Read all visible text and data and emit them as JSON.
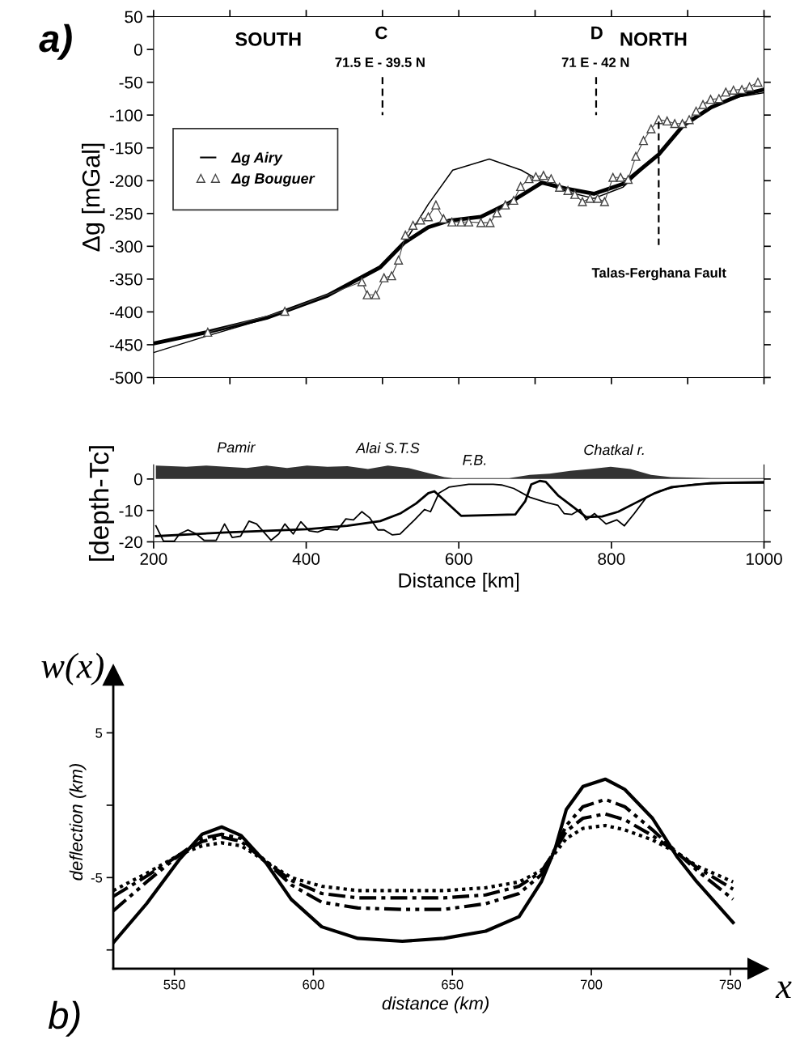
{
  "chart_data": [
    {
      "type": "line",
      "title": "a)",
      "ylabel": "Δg [mGal]",
      "xlim": [
        200,
        1000
      ],
      "ylim": [
        -500,
        50
      ],
      "yticks": [
        50,
        0,
        -50,
        -100,
        -150,
        -200,
        -250,
        -300,
        -350,
        -400,
        -450,
        -500
      ],
      "tick_labels": "y",
      "legend": "top left",
      "series": [
        {
          "type": "line",
          "color": "#000000",
          "line_style": "solid",
          "x": [
            200,
            269,
            348,
            428,
            497,
            528,
            560,
            587,
            629,
            666,
            709,
            740,
            777,
            815,
            862,
            894,
            931,
            968,
            1000
          ],
          "values": [
            -448,
            -431,
            -409,
            -375,
            -332,
            -295,
            -271,
            -261,
            -255,
            -234,
            -203,
            -212,
            -220,
            -205,
            -160,
            -116,
            -88,
            -70,
            -61
          ]
        },
        {
          "name": "Δg Airy",
          "type": "line",
          "color": "#000000",
          "line_style": "solid",
          "x": [
            200,
            269,
            348,
            428,
            497,
            528,
            560,
            592,
            640,
            682,
            714,
            745,
            777,
            815,
            862,
            894,
            931,
            968,
            1000
          ],
          "values": [
            -462,
            -437,
            -410,
            -375,
            -332,
            -296,
            -236,
            -184,
            -167,
            -184,
            -205,
            -218,
            -227,
            -210,
            -160,
            -116,
            -88,
            -72,
            -66
          ]
        },
        {
          "name": "Δg Bouguer",
          "type": "line",
          "color": "#444444",
          "line_style": "solid",
          "marker": "triangle",
          "x": [
            271,
            372,
            473,
            480,
            491,
            502,
            512,
            521,
            530,
            540,
            550,
            560,
            570,
            580,
            591,
            603,
            613,
            629,
            641,
            650,
            661,
            672,
            681,
            692,
            701,
            711,
            721,
            732,
            743,
            752,
            762,
            772,
            782,
            791,
            802,
            812,
            822,
            832,
            842,
            852,
            862,
            873,
            883,
            893,
            902,
            911,
            920,
            930,
            941,
            950,
            960,
            971,
            981,
            992
          ],
          "values": [
            -431,
            -399,
            -354,
            -374,
            -374,
            -348,
            -345,
            -321,
            -283,
            -268,
            -260,
            -255,
            -237,
            -258,
            -263,
            -263,
            -263,
            -264,
            -264,
            -249,
            -237,
            -230,
            -209,
            -197,
            -194,
            -192,
            -197,
            -210,
            -215,
            -221,
            -232,
            -227,
            -227,
            -232,
            -195,
            -195,
            -198,
            -163,
            -139,
            -121,
            -107,
            -109,
            -113,
            -113,
            -107,
            -94,
            -84,
            -76,
            -75,
            -65,
            -62,
            -61,
            -57,
            -50
          ]
        },
        {
          "type": "line",
          "color": "#000000",
          "line_style": "dashed",
          "x": [
            500,
            500
          ],
          "values": [
            -42,
            -100
          ]
        },
        {
          "type": "line",
          "color": "#000000",
          "line_style": "dashed",
          "x": [
            780,
            780
          ],
          "values": [
            -42,
            -100
          ]
        },
        {
          "type": "line",
          "color": "#000000",
          "line_style": "dashed",
          "x": [
            862,
            862
          ],
          "values": [
            -110,
            -298
          ]
        }
      ],
      "annotations": [
        "SOUTH",
        "C",
        "71.5 E - 39.5 N",
        "D",
        "71 E - 42 N",
        "NORTH",
        "Talas-Ferghana Fault"
      ]
    },
    {
      "type": "line",
      "ylabel": "[depth-Tc]",
      "xlabel": "Distance [km]",
      "xlim": [
        200,
        1000
      ],
      "ylim": [
        -20,
        4.5
      ],
      "xticks": [
        200,
        400,
        600,
        800,
        1000
      ],
      "yticks": [
        0,
        -10,
        -20
      ],
      "series": [
        {
          "type": "area",
          "color": "#333333",
          "x": [
            203,
            243,
            269,
            295,
            322,
            348,
            375,
            401,
            428,
            454,
            481,
            507,
            534,
            560,
            581,
            592,
            666,
            693,
            719,
            746,
            772,
            799,
            825,
            852,
            878,
            931,
            1000
          ],
          "values": [
            4.3,
            3.9,
            4.3,
            3.9,
            3.5,
            4.3,
            3.5,
            4.3,
            3.9,
            4.1,
            3.2,
            4.3,
            3.5,
            1.9,
            0.6,
            0.3,
            0.3,
            1.3,
            1.7,
            2.6,
            3.2,
            3.9,
            3.2,
            1.3,
            0.6,
            0.3,
            0.3
          ]
        },
        {
          "type": "line",
          "color": "#000000",
          "line_style": "solid",
          "x": [
            203,
            295,
            401,
            454,
            497,
            523,
            544,
            560,
            568,
            603,
            674,
            687,
            695,
            706,
            714,
            730,
            751,
            767,
            788,
            809,
            830,
            857,
            878,
            931,
            1000
          ],
          "values": [
            -18.2,
            -17.0,
            -16.0,
            -14.9,
            -13.4,
            -11.0,
            -7.8,
            -4.5,
            -3.9,
            -11.7,
            -11.3,
            -7.1,
            -1.7,
            -0.6,
            -0.9,
            -5.2,
            -9.1,
            -12.1,
            -11.9,
            -10.4,
            -7.8,
            -4.5,
            -2.6,
            -1.3,
            -1.0
          ]
        },
        {
          "type": "line",
          "color": "#000000",
          "line_style": "solid",
          "x": [
            203,
            213,
            227,
            234,
            245,
            256,
            266,
            282,
            293,
            303,
            314,
            325,
            335,
            354,
            364,
            372,
            383,
            393,
            404,
            415,
            425,
            441,
            452,
            462,
            473,
            483,
            494,
            502,
            513,
            523,
            542,
            555,
            563,
            574,
            587,
            613,
            645,
            656,
            672,
            693,
            714,
            730,
            738,
            748,
            759,
            767,
            778,
            793,
            807,
            817,
            830,
            846,
            862,
            883,
            910,
            958,
            1000
          ],
          "values": [
            -14.9,
            -19.8,
            -19.8,
            -17.5,
            -16.2,
            -17.5,
            -19.5,
            -19.5,
            -14.3,
            -18.6,
            -18.2,
            -13.4,
            -14.3,
            -19.5,
            -17.5,
            -14.3,
            -17.5,
            -13.6,
            -16.5,
            -16.9,
            -16.0,
            -16.2,
            -12.7,
            -13.0,
            -10.4,
            -12.3,
            -16.2,
            -16.2,
            -17.8,
            -17.5,
            -13.0,
            -9.7,
            -10.4,
            -4.5,
            -2.6,
            -1.7,
            -1.7,
            -1.9,
            -3.0,
            -5.8,
            -7.4,
            -8.4,
            -11.0,
            -11.3,
            -9.7,
            -13.0,
            -11.0,
            -14.3,
            -13.0,
            -14.9,
            -11.0,
            -5.8,
            -3.9,
            -2.6,
            -1.7,
            -1.3,
            -1.3
          ]
        }
      ],
      "annotations": [
        {
          "text": "Pamir",
          "x": 308,
          "y": 4.3
        },
        {
          "text": "Alai S.T.S",
          "x": 507,
          "y": 4.1
        },
        {
          "text": "F.B.",
          "x": 621,
          "y": 0.3
        },
        {
          "text": "Chatkal r.",
          "x": 804,
          "y": 3.5
        }
      ]
    },
    {
      "type": "line",
      "title": "b)",
      "xlabel": "distance (km)",
      "ylabel": "deflection (km)",
      "xlim": [
        528,
        760
      ],
      "ylim": [
        -11.3,
        9
      ],
      "xticks": [
        550,
        600,
        650,
        700,
        750
      ],
      "yticks": [
        {
          "value": 5,
          "label": "5"
        },
        {
          "value": 0,
          "label": null
        },
        {
          "value": -5,
          "label": "-5"
        },
        {
          "value": -10,
          "label": null
        }
      ],
      "series": [
        {
          "type": "line",
          "color": "#000000",
          "line_style": "solid",
          "x": [
            528,
            540,
            552,
            560,
            567,
            574,
            583,
            592,
            603,
            616,
            632,
            647,
            662,
            674,
            682,
            687,
            691,
            697,
            705,
            712,
            722,
            731,
            738,
            751
          ],
          "values": [
            -9.5,
            -6.8,
            -3.7,
            -2.0,
            -1.5,
            -2.1,
            -4.0,
            -6.5,
            -8.4,
            -9.2,
            -9.4,
            -9.2,
            -8.7,
            -7.7,
            -5.3,
            -3.0,
            -0.3,
            1.3,
            1.8,
            1.1,
            -0.9,
            -3.6,
            -5.3,
            -8.1
          ]
        },
        {
          "type": "line",
          "color": "#000000",
          "line_style": "dashdotdot",
          "x": [
            528,
            540,
            552,
            560,
            567,
            574,
            583,
            592,
            603,
            616,
            632,
            647,
            662,
            674,
            682,
            687,
            691,
            697,
            705,
            712,
            722,
            731,
            738,
            751
          ],
          "values": [
            -7.3,
            -5.3,
            -3.4,
            -2.3,
            -2.0,
            -2.3,
            -3.9,
            -5.5,
            -6.7,
            -7.1,
            -7.2,
            -7.2,
            -6.8,
            -6.1,
            -4.8,
            -3.0,
            -1.4,
            -0.1,
            0.4,
            -0.1,
            -1.7,
            -3.3,
            -4.5,
            -6.5
          ]
        },
        {
          "type": "line",
          "color": "#000000",
          "line_style": "dashdot",
          "x": [
            528,
            540,
            552,
            560,
            567,
            574,
            583,
            592,
            603,
            616,
            632,
            647,
            662,
            674,
            682,
            687,
            691,
            697,
            705,
            712,
            722,
            731,
            738,
            751
          ],
          "values": [
            -6.3,
            -4.9,
            -3.4,
            -2.5,
            -2.2,
            -2.5,
            -3.9,
            -5.2,
            -6.1,
            -6.4,
            -6.4,
            -6.4,
            -6.2,
            -5.6,
            -4.6,
            -3.1,
            -1.8,
            -0.9,
            -0.6,
            -1.0,
            -2.1,
            -3.3,
            -4.3,
            -5.8
          ]
        },
        {
          "type": "line",
          "color": "#000000",
          "line_style": "dotted",
          "x": [
            528,
            540,
            552,
            560,
            567,
            574,
            583,
            592,
            603,
            616,
            632,
            647,
            662,
            674,
            682,
            687,
            691,
            697,
            705,
            712,
            722,
            731,
            738,
            751
          ],
          "values": [
            -5.9,
            -4.7,
            -3.4,
            -2.8,
            -2.6,
            -2.8,
            -3.9,
            -5.0,
            -5.6,
            -5.9,
            -5.9,
            -5.9,
            -5.7,
            -5.3,
            -4.5,
            -3.3,
            -2.3,
            -1.6,
            -1.4,
            -1.7,
            -2.4,
            -3.3,
            -4.2,
            -5.3
          ]
        }
      ],
      "annotations": [
        "w(x)",
        "x"
      ]
    }
  ]
}
